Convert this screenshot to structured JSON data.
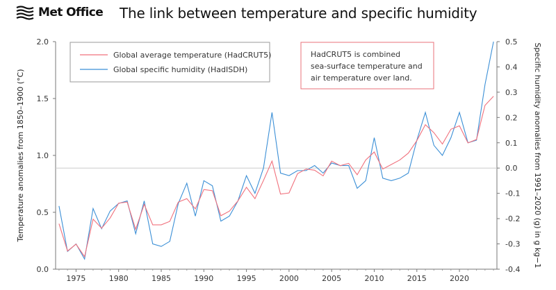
{
  "header": {
    "logo_text": "Met Office",
    "title": "The link between temperature and specific humidity"
  },
  "colors": {
    "temperature": "#f0707c",
    "humidity": "#3b8fd6",
    "note_border": "#e8707a",
    "zero_line": "#cccccc"
  },
  "legend": {
    "items": [
      "Global average temperature (HadCRUT5)",
      "Global specific humidity (HadISDH)"
    ]
  },
  "note": {
    "lines": [
      "HadCRUT5 is combined",
      "sea-surface temperature and",
      "air temperature over land."
    ]
  },
  "chart_data": {
    "type": "line",
    "x": [
      1973,
      1974,
      1975,
      1976,
      1977,
      1978,
      1979,
      1980,
      1981,
      1982,
      1983,
      1984,
      1985,
      1986,
      1987,
      1988,
      1989,
      1990,
      1991,
      1992,
      1993,
      1994,
      1995,
      1996,
      1997,
      1998,
      1999,
      2000,
      2001,
      2002,
      2003,
      2004,
      2005,
      2006,
      2007,
      2008,
      2009,
      2010,
      2011,
      2012,
      2013,
      2014,
      2015,
      2016,
      2017,
      2018,
      2019,
      2020,
      2021,
      2022,
      2023,
      2024
    ],
    "series": [
      {
        "name": "Global average temperature (HadCRUT5)",
        "axis": "left",
        "values": [
          0.4,
          0.16,
          0.22,
          0.11,
          0.44,
          0.36,
          0.45,
          0.58,
          0.59,
          0.35,
          0.57,
          0.39,
          0.39,
          0.42,
          0.59,
          0.62,
          0.53,
          0.7,
          0.69,
          0.47,
          0.51,
          0.6,
          0.72,
          0.62,
          0.78,
          0.95,
          0.66,
          0.67,
          0.84,
          0.88,
          0.87,
          0.82,
          0.95,
          0.91,
          0.93,
          0.83,
          0.96,
          1.03,
          0.88,
          0.92,
          0.96,
          1.02,
          1.13,
          1.27,
          1.2,
          1.1,
          1.23,
          1.26,
          1.11,
          1.14,
          1.44,
          1.52
        ]
      },
      {
        "name": "Global specific humidity (HadISDH)",
        "axis": "right",
        "values": [
          -0.15,
          -0.33,
          -0.3,
          -0.36,
          -0.16,
          -0.24,
          -0.17,
          -0.14,
          -0.13,
          -0.26,
          -0.13,
          -0.3,
          -0.31,
          -0.29,
          -0.14,
          -0.06,
          -0.19,
          -0.05,
          -0.07,
          -0.21,
          -0.19,
          -0.13,
          -0.03,
          -0.1,
          0.0,
          0.22,
          -0.02,
          -0.03,
          -0.01,
          -0.01,
          0.01,
          -0.02,
          0.02,
          0.01,
          0.01,
          -0.08,
          -0.05,
          0.12,
          -0.04,
          -0.05,
          -0.04,
          -0.02,
          0.11,
          0.22,
          0.09,
          0.05,
          0.12,
          0.22,
          0.1,
          0.11,
          0.33,
          0.5
        ]
      }
    ],
    "xlim": [
      1972.6,
      2024.4
    ],
    "ylim_left": [
      0.0,
      2.0
    ],
    "ylim_right": [
      -0.4,
      0.5
    ],
    "x_ticks": [
      1975,
      1980,
      1985,
      1990,
      1995,
      2000,
      2005,
      2010,
      2015,
      2020
    ],
    "y_ticks_left": [
      "0.0",
      "0.5",
      "1.0",
      "1.5",
      "2.0"
    ],
    "y_ticks_right": [
      "-0.4",
      "-0.3",
      "-0.2",
      "-0.1",
      "0.0",
      "0.1",
      "0.2",
      "0.3",
      "0.4",
      "0.5"
    ],
    "ylabel_left": "Temperature anomalies from 1850–1900 (°C)",
    "ylabel_right": "Specific humidity anomalies from 1991–2020 (g) in g kg−1",
    "reference_line_right": 0.0,
    "grid": false,
    "legend_position": "top-left"
  }
}
